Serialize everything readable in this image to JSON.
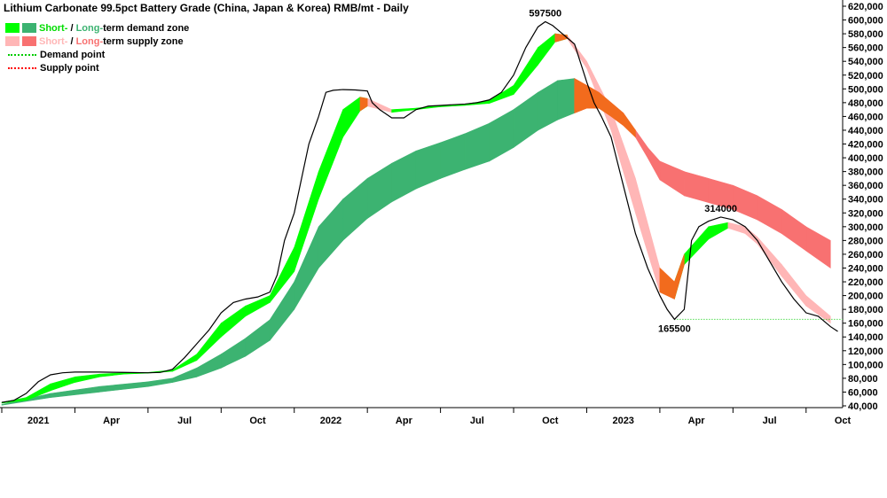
{
  "chart_data": {
    "type": "area",
    "title": "Lithium Carbonate 99.5pct Battery Grade (China, Japan & Korea) RMB/mt - Daily",
    "ylim": [
      40000,
      620000
    ],
    "yticks": [
      40000,
      60000,
      80000,
      100000,
      120000,
      140000,
      160000,
      180000,
      200000,
      220000,
      240000,
      260000,
      280000,
      300000,
      320000,
      340000,
      360000,
      380000,
      400000,
      420000,
      440000,
      460000,
      480000,
      500000,
      520000,
      540000,
      560000,
      580000,
      600000,
      620000
    ],
    "xlim": [
      0,
      34.5
    ],
    "x_ticks": [
      {
        "label": "2021",
        "m": 0
      },
      {
        "label": "Apr",
        "m": 3
      },
      {
        "label": "Jul",
        "m": 6
      },
      {
        "label": "Oct",
        "m": 9
      },
      {
        "label": "2022",
        "m": 12
      },
      {
        "label": "Apr",
        "m": 15
      },
      {
        "label": "Jul",
        "m": 18
      },
      {
        "label": "Oct",
        "m": 21
      },
      {
        "label": "2023",
        "m": 24
      },
      {
        "label": "Apr",
        "m": 27
      },
      {
        "label": "Jul",
        "m": 30
      },
      {
        "label": "Oct",
        "m": 33
      }
    ],
    "legend": [
      {
        "short_label": "Short-",
        "sep": " / ",
        "long_label": "Long-",
        "rest": "term demand zone",
        "short_color": "#00ff00",
        "long_color": "#3cb371"
      },
      {
        "short_label": "Short-",
        "sep": " / ",
        "long_label": "Long-",
        "rest": "term supply zone",
        "short_color": "#ffb6b6",
        "long_color": "#f87171"
      },
      {
        "label": "Demand point",
        "color": "#00cc00"
      },
      {
        "label": "Supply point",
        "color": "#ff0000"
      }
    ],
    "price": [
      [
        0,
        45000
      ],
      [
        0.5,
        48000
      ],
      [
        1,
        58000
      ],
      [
        1.5,
        75000
      ],
      [
        2,
        85000
      ],
      [
        2.5,
        88000
      ],
      [
        3,
        89000
      ],
      [
        4,
        89000
      ],
      [
        5,
        88500
      ],
      [
        6,
        88000
      ],
      [
        6.5,
        88500
      ],
      [
        7,
        93000
      ],
      [
        7.5,
        110000
      ],
      [
        8,
        130000
      ],
      [
        8.5,
        150000
      ],
      [
        9,
        175000
      ],
      [
        9.5,
        190000
      ],
      [
        10,
        195000
      ],
      [
        10.5,
        198000
      ],
      [
        11,
        205000
      ],
      [
        11.3,
        230000
      ],
      [
        11.6,
        280000
      ],
      [
        12,
        320000
      ],
      [
        12.3,
        370000
      ],
      [
        12.6,
        420000
      ],
      [
        13,
        460000
      ],
      [
        13.3,
        495000
      ],
      [
        13.6,
        498000
      ],
      [
        14,
        499000
      ],
      [
        14.5,
        498500
      ],
      [
        15,
        497000
      ],
      [
        15.2,
        480000
      ],
      [
        15.5,
        470000
      ],
      [
        16,
        458000
      ],
      [
        16.5,
        458000
      ],
      [
        17,
        470000
      ],
      [
        17.5,
        475000
      ],
      [
        18,
        476000
      ],
      [
        19,
        478000
      ],
      [
        19.5,
        480000
      ],
      [
        20,
        484000
      ],
      [
        20.5,
        495000
      ],
      [
        21,
        520000
      ],
      [
        21.5,
        560000
      ],
      [
        22,
        590000
      ],
      [
        22.3,
        597500
      ],
      [
        22.6,
        592000
      ],
      [
        23,
        580000
      ],
      [
        23.5,
        565000
      ],
      [
        24,
        510000
      ],
      [
        24.3,
        480000
      ],
      [
        24.6,
        460000
      ],
      [
        25,
        430000
      ],
      [
        25.5,
        360000
      ],
      [
        26,
        290000
      ],
      [
        26.5,
        240000
      ],
      [
        27,
        200000
      ],
      [
        27.3,
        180000
      ],
      [
        27.6,
        165500
      ],
      [
        28,
        180000
      ],
      [
        28.3,
        280000
      ],
      [
        28.6,
        300000
      ],
      [
        29,
        308000
      ],
      [
        29.5,
        314000
      ],
      [
        30,
        310000
      ],
      [
        30.5,
        300000
      ],
      [
        31,
        280000
      ],
      [
        31.5,
        250000
      ],
      [
        32,
        220000
      ],
      [
        32.5,
        195000
      ],
      [
        33,
        175000
      ],
      [
        33.5,
        170000
      ],
      [
        34,
        155000
      ],
      [
        34.3,
        148000
      ]
    ],
    "short_zone": [
      [
        0,
        45000,
        44000
      ],
      [
        1,
        52000,
        48000
      ],
      [
        2,
        72000,
        62000
      ],
      [
        3,
        82000,
        74000
      ],
      [
        4,
        86000,
        82000
      ],
      [
        5,
        88000,
        86000
      ],
      [
        6,
        88500,
        87500
      ],
      [
        7,
        92000,
        90000
      ],
      [
        8,
        115000,
        106000
      ],
      [
        9,
        160000,
        140000
      ],
      [
        10,
        185000,
        170000
      ],
      [
        11,
        200000,
        190000
      ],
      [
        12,
        270000,
        235000
      ],
      [
        13,
        380000,
        340000
      ],
      [
        14,
        470000,
        430000
      ],
      [
        14.7,
        488000,
        468000
      ],
      [
        15,
        486000,
        475000
      ],
      [
        16,
        470000,
        466000
      ],
      [
        17,
        472000,
        470000
      ],
      [
        18,
        476000,
        474000
      ],
      [
        19,
        478000,
        476000
      ],
      [
        20,
        483000,
        479000
      ],
      [
        21,
        505000,
        492000
      ],
      [
        22,
        560000,
        535000
      ],
      [
        22.7,
        580000,
        568000
      ],
      [
        23.2,
        578000,
        573000
      ],
      [
        24,
        540000,
        530000
      ],
      [
        25,
        470000,
        440000
      ],
      [
        26,
        370000,
        320000
      ],
      [
        27,
        240000,
        205000
      ],
      [
        27.6,
        220000,
        195000
      ],
      [
        28,
        260000,
        245000
      ],
      [
        29,
        300000,
        282000
      ],
      [
        29.8,
        306000,
        298000
      ],
      [
        30.5,
        300000,
        290000
      ],
      [
        31,
        285000,
        275000
      ],
      [
        32,
        245000,
        228000
      ],
      [
        33,
        200000,
        185000
      ],
      [
        34,
        170000,
        160000
      ]
    ],
    "long_zone": [
      [
        0,
        42000,
        41000
      ],
      [
        2,
        58000,
        52000
      ],
      [
        4,
        68000,
        60000
      ],
      [
        6,
        75000,
        68000
      ],
      [
        7,
        80000,
        74000
      ],
      [
        8,
        95000,
        82000
      ],
      [
        9,
        115000,
        95000
      ],
      [
        10,
        138000,
        112000
      ],
      [
        11,
        165000,
        135000
      ],
      [
        12,
        220000,
        180000
      ],
      [
        13,
        300000,
        240000
      ],
      [
        14,
        340000,
        280000
      ],
      [
        15,
        370000,
        312000
      ],
      [
        16,
        392000,
        336000
      ],
      [
        17,
        410000,
        355000
      ],
      [
        18,
        422000,
        370000
      ],
      [
        19,
        435000,
        383000
      ],
      [
        20,
        450000,
        395000
      ],
      [
        21,
        470000,
        415000
      ],
      [
        22,
        495000,
        440000
      ],
      [
        22.8,
        512000,
        455000
      ],
      [
        23.5,
        515000,
        465000
      ],
      [
        24,
        505000,
        472000
      ],
      [
        24.5,
        495000,
        472000
      ],
      [
        25,
        480000,
        460000
      ],
      [
        25.5,
        465000,
        447000
      ],
      [
        26,
        440000,
        430000
      ],
      [
        26.5,
        415000,
        400000
      ],
      [
        27,
        395000,
        368000
      ],
      [
        28,
        380000,
        345000
      ],
      [
        29,
        370000,
        335000
      ],
      [
        30,
        360000,
        325000
      ],
      [
        31,
        345000,
        310000
      ],
      [
        32,
        325000,
        290000
      ],
      [
        33,
        300000,
        265000
      ],
      [
        34,
        280000,
        240000
      ]
    ],
    "demand_point": {
      "y": 165500,
      "x_start": 27.6,
      "x_end": 34.5
    },
    "annotations": [
      {
        "text": "597500",
        "x": 22.3,
        "y": 597500,
        "pos": "above"
      },
      {
        "text": "314000",
        "x": 29.5,
        "y": 314000,
        "pos": "above"
      },
      {
        "text": "165500",
        "x": 27.6,
        "y": 165500,
        "pos": "below"
      }
    ],
    "colors": {
      "price": "#000000",
      "short_demand": "#00ff00",
      "long_demand": "#3cb371",
      "short_supply": "#ffb6b6",
      "long_supply": "#f87171",
      "transition": "#f26b1d",
      "demand_point": "#00cc00",
      "supply_point": "#ff0000"
    }
  }
}
